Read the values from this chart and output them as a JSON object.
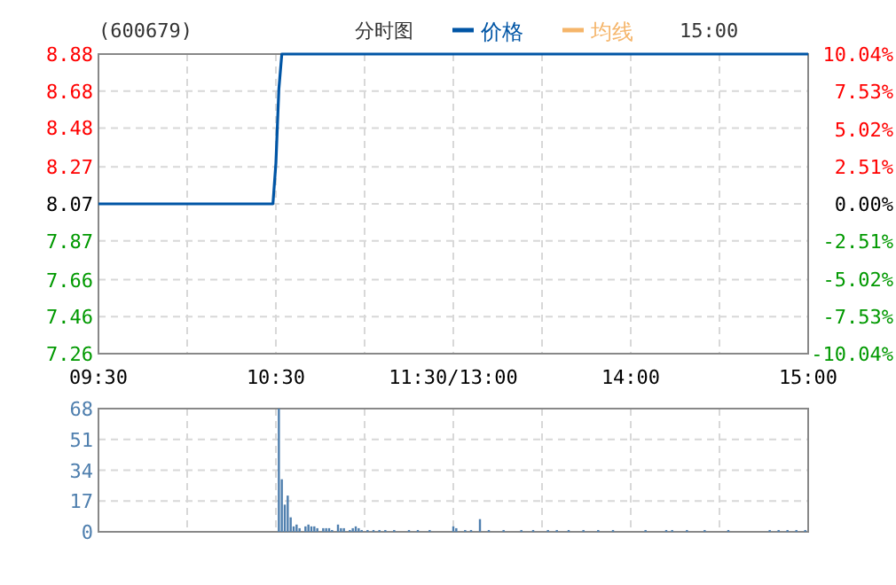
{
  "chart_data": [
    {
      "type": "line",
      "title": "(600679)",
      "subtitle": "分时图",
      "annotations": [
        "15:00"
      ],
      "legend": "top",
      "grid": true,
      "categories": [
        "09:30",
        null,
        null,
        null,
        null,
        null,
        null,
        null,
        null,
        null,
        null,
        null,
        null,
        null,
        null,
        null,
        null,
        null,
        null,
        null,
        null,
        null,
        null,
        null,
        null,
        null,
        null,
        null,
        null,
        null,
        null,
        null,
        null,
        null,
        null,
        null,
        null,
        null,
        null,
        null,
        null,
        null,
        null,
        null,
        null,
        null,
        null,
        null,
        null,
        null,
        null,
        null,
        null,
        null,
        null,
        null,
        null,
        null,
        null,
        null,
        "10:30",
        null,
        null,
        null,
        null,
        null,
        null,
        null,
        null,
        null,
        null,
        null,
        null,
        null,
        null,
        null,
        null,
        null,
        null,
        null,
        null,
        null,
        null,
        null,
        null,
        null,
        null,
        null,
        null,
        null,
        null,
        null,
        null,
        null,
        null,
        null,
        null,
        null,
        null,
        null,
        null,
        null,
        null,
        null,
        null,
        null,
        null,
        null,
        null,
        null,
        null,
        null,
        null,
        null,
        null,
        null,
        null,
        null,
        null,
        null,
        "11:30/13:00",
        null,
        null,
        null,
        null,
        null,
        null,
        null,
        null,
        null,
        null,
        null,
        null,
        null,
        null,
        null,
        null,
        null,
        null,
        null,
        null,
        null,
        null,
        null,
        null,
        null,
        null,
        null,
        null,
        null,
        null,
        null,
        null,
        null,
        null,
        null,
        null,
        null,
        null,
        null,
        null,
        null,
        null,
        null,
        null,
        null,
        null,
        null,
        null,
        null,
        null,
        null,
        null,
        null,
        null,
        null,
        null,
        null,
        null,
        null,
        "14:00",
        null,
        null,
        null,
        null,
        null,
        null,
        null,
        null,
        null,
        null,
        null,
        null,
        null,
        null,
        null,
        null,
        null,
        null,
        null,
        null,
        null,
        null,
        null,
        null,
        null,
        null,
        null,
        null,
        null,
        null,
        null,
        null,
        null,
        null,
        null,
        null,
        null,
        null,
        null,
        null,
        null,
        null,
        null,
        null,
        null,
        null,
        null,
        null,
        null,
        null,
        null,
        null,
        null,
        null,
        null,
        null,
        null,
        null,
        null,
        "15:00"
      ],
      "series": [
        {
          "name": "价格",
          "color": "#0055a5",
          "values": [
            8.07,
            8.07,
            8.07,
            8.07,
            8.07,
            8.07,
            8.07,
            8.07,
            8.07,
            8.07,
            8.07,
            8.07,
            8.07,
            8.07,
            8.07,
            8.07,
            8.07,
            8.07,
            8.07,
            8.07,
            8.07,
            8.07,
            8.07,
            8.07,
            8.07,
            8.07,
            8.07,
            8.07,
            8.07,
            8.07,
            8.07,
            8.07,
            8.07,
            8.07,
            8.07,
            8.07,
            8.07,
            8.07,
            8.07,
            8.07,
            8.07,
            8.07,
            8.07,
            8.07,
            8.07,
            8.07,
            8.07,
            8.07,
            8.07,
            8.07,
            8.07,
            8.07,
            8.07,
            8.07,
            8.07,
            8.07,
            8.07,
            8.07,
            8.07,
            8.07,
            8.29,
            8.69,
            8.88,
            8.88,
            8.88,
            8.88,
            8.88,
            8.88,
            8.88,
            8.88,
            8.88,
            8.88,
            8.88,
            8.88,
            8.88,
            8.88,
            8.88,
            8.88,
            8.88,
            8.88,
            8.88,
            8.88,
            8.88,
            8.88,
            8.88,
            8.88,
            8.88,
            8.88,
            8.88,
            8.88,
            8.88,
            8.88,
            8.88,
            8.88,
            8.88,
            8.88,
            8.88,
            8.88,
            8.88,
            8.88,
            8.88,
            8.88,
            8.88,
            8.88,
            8.88,
            8.88,
            8.88,
            8.88,
            8.88,
            8.88,
            8.88,
            8.88,
            8.88,
            8.88,
            8.88,
            8.88,
            8.88,
            8.88,
            8.88,
            8.88,
            8.88,
            8.88,
            8.88,
            8.88,
            8.88,
            8.88,
            8.88,
            8.88,
            8.88,
            8.88,
            8.88,
            8.88,
            8.88,
            8.88,
            8.88,
            8.88,
            8.88,
            8.88,
            8.88,
            8.88,
            8.88,
            8.88,
            8.88,
            8.88,
            8.88,
            8.88,
            8.88,
            8.88,
            8.88,
            8.88,
            8.88,
            8.88,
            8.88,
            8.88,
            8.88,
            8.88,
            8.88,
            8.88,
            8.88,
            8.88,
            8.88,
            8.88,
            8.88,
            8.88,
            8.88,
            8.88,
            8.88,
            8.88,
            8.88,
            8.88,
            8.88,
            8.88,
            8.88,
            8.88,
            8.88,
            8.88,
            8.88,
            8.88,
            8.88,
            8.88,
            8.88,
            8.88,
            8.88,
            8.88,
            8.88,
            8.88,
            8.88,
            8.88,
            8.88,
            8.88,
            8.88,
            8.88,
            8.88,
            8.88,
            8.88,
            8.88,
            8.88,
            8.88,
            8.88,
            8.88,
            8.88,
            8.88,
            8.88,
            8.88,
            8.88,
            8.88,
            8.88,
            8.88,
            8.88,
            8.88,
            8.88,
            8.88,
            8.88,
            8.88,
            8.88,
            8.88,
            8.88,
            8.88,
            8.88,
            8.88,
            8.88,
            8.88,
            8.88,
            8.88,
            8.88,
            8.88,
            8.88,
            8.88,
            8.88,
            8.88,
            8.88,
            8.88,
            8.88,
            8.88,
            8.88,
            8.88,
            8.88,
            8.88,
            8.88,
            8.88,
            8.88
          ]
        },
        {
          "name": "均线",
          "color": "#f5b56a",
          "values": [
            null,
            null,
            null,
            null,
            null,
            null,
            null,
            null,
            null,
            null,
            null,
            null,
            null,
            null,
            null,
            null,
            null,
            null,
            null,
            null,
            null,
            null,
            null,
            null,
            null,
            null,
            null,
            null,
            null,
            null,
            null,
            null,
            null,
            null,
            null,
            null,
            null,
            null,
            null,
            null,
            null,
            null,
            null,
            null,
            null,
            null,
            null,
            null,
            null,
            null,
            null,
            null,
            null,
            null,
            null,
            null,
            null,
            null,
            null,
            null,
            null,
            null,
            null,
            null,
            null,
            null,
            null,
            null,
            null,
            null,
            null,
            null,
            null,
            null,
            null,
            null,
            null,
            null,
            null,
            null,
            null,
            null,
            null,
            null,
            null,
            null,
            null,
            null,
            null,
            null,
            null,
            null,
            null,
            null,
            null,
            null,
            null,
            null,
            null,
            null,
            null,
            null,
            null,
            null,
            null,
            null,
            null,
            null,
            null,
            null,
            null,
            null,
            null,
            null,
            null,
            null,
            null,
            null,
            null,
            null,
            null,
            null,
            null,
            null,
            null,
            null,
            null,
            null,
            null,
            null,
            null,
            null,
            null,
            null,
            null,
            null,
            null,
            null,
            null,
            null,
            null,
            null,
            null,
            null,
            null,
            null,
            null,
            null,
            null,
            null,
            null,
            null,
            null,
            null,
            null,
            null,
            null,
            null,
            null,
            null,
            null,
            null,
            null,
            null,
            null,
            null,
            null,
            null,
            null,
            null,
            null,
            null,
            null,
            null,
            null,
            null,
            null,
            null,
            null,
            null,
            null,
            null,
            null,
            null,
            null,
            null,
            null,
            null,
            null,
            null,
            null,
            null,
            null,
            null,
            null,
            null,
            null,
            null,
            null,
            null,
            null,
            null,
            null,
            null,
            null,
            null,
            null,
            null,
            null,
            null,
            null,
            null,
            null,
            null,
            null,
            null,
            null,
            null,
            null,
            null,
            null,
            null,
            null,
            null,
            null,
            null,
            null,
            null,
            null,
            null,
            null,
            null,
            null,
            null,
            null,
            null,
            null,
            null,
            null,
            null,
            null
          ]
        }
      ],
      "ylim": [
        7.26,
        8.88
      ],
      "yticks": [
        7.26,
        7.46,
        7.66,
        7.87,
        8.07,
        8.27,
        8.48,
        8.68,
        8.88
      ],
      "y2lim": [
        -10.04,
        10.04
      ],
      "y2ticks": [
        {
          "value": -10.04,
          "label": "-10.04%"
        },
        {
          "value": -7.53,
          "label": "-7.53%"
        },
        {
          "value": -5.02,
          "label": "-5.02%"
        },
        {
          "value": -2.51,
          "label": "-2.51%"
        },
        {
          "value": 0,
          "label": "0.00%"
        },
        {
          "value": 2.51,
          "label": "2.51%"
        },
        {
          "value": 5.02,
          "label": "5.02%"
        },
        {
          "value": 7.53,
          "label": "7.53%"
        },
        {
          "value": 10.04,
          "label": "10.04%"
        }
      ]
    },
    {
      "type": "bar",
      "color": "#4f7fae",
      "grid": true,
      "tick_labels": "y",
      "categories": [
        null,
        null,
        null,
        null,
        null,
        null,
        null,
        null,
        null,
        null,
        null,
        null,
        null,
        null,
        null,
        null,
        null,
        null,
        null,
        null,
        null,
        null,
        null,
        null,
        null,
        null,
        null,
        null,
        null,
        null,
        null,
        null,
        null,
        null,
        null,
        null,
        null,
        null,
        null,
        null,
        null,
        null,
        null,
        null,
        null,
        null,
        null,
        null,
        null,
        null,
        null,
        null,
        null,
        null,
        null,
        null,
        null,
        null,
        null,
        null,
        null,
        null,
        null,
        null,
        null,
        null,
        null,
        null,
        null,
        null,
        null,
        null,
        null,
        null,
        null,
        null,
        null,
        null,
        null,
        null,
        null,
        null,
        null,
        null,
        null,
        null,
        null,
        null,
        null,
        null,
        null,
        null,
        null,
        null,
        null,
        null,
        null,
        null,
        null,
        null,
        null,
        null,
        null,
        null,
        null,
        null,
        null,
        null,
        null,
        null,
        null,
        null,
        null,
        null,
        null,
        null,
        null,
        null,
        null,
        null,
        null,
        null,
        null,
        null,
        null,
        null,
        null,
        null,
        null,
        null,
        null,
        null,
        null,
        null,
        null,
        null,
        null,
        null,
        null,
        null,
        null,
        null,
        null,
        null,
        null,
        null,
        null,
        null,
        null,
        null,
        null,
        null,
        null,
        null,
        null,
        null,
        null,
        null,
        null,
        null,
        null,
        null,
        null,
        null,
        null,
        null,
        null,
        null,
        null,
        null,
        null,
        null,
        null,
        null,
        null,
        null,
        null,
        null,
        null,
        null,
        null,
        null,
        null,
        null,
        null,
        null,
        null,
        null,
        null,
        null,
        null,
        null,
        null,
        null,
        null,
        null,
        null,
        null,
        null,
        null,
        null,
        null,
        null,
        null,
        null,
        null,
        null,
        null,
        null,
        null,
        null,
        null,
        null,
        null,
        null,
        null,
        null,
        null,
        null,
        null,
        null,
        null,
        null,
        null,
        null,
        null,
        null,
        null,
        null,
        null,
        null,
        null,
        null,
        null,
        null,
        null,
        null,
        null,
        null,
        null,
        null
      ],
      "values": [
        null,
        null,
        null,
        null,
        null,
        null,
        null,
        null,
        null,
        null,
        null,
        null,
        null,
        null,
        null,
        null,
        null,
        null,
        null,
        null,
        null,
        null,
        null,
        null,
        null,
        null,
        null,
        null,
        null,
        null,
        null,
        null,
        null,
        null,
        null,
        null,
        null,
        null,
        null,
        null,
        null,
        null,
        null,
        null,
        null,
        null,
        null,
        null,
        null,
        null,
        null,
        null,
        null,
        null,
        null,
        null,
        null,
        null,
        null,
        null,
        null,
        68,
        29,
        15,
        20,
        8,
        3,
        4,
        2,
        null,
        3,
        4,
        3,
        3,
        2,
        null,
        2,
        2,
        2,
        1,
        null,
        4,
        2,
        2,
        null,
        1,
        2,
        3,
        2,
        1,
        null,
        1,
        null,
        1,
        null,
        1,
        null,
        1,
        null,
        null,
        1,
        null,
        null,
        null,
        null,
        1,
        null,
        null,
        1,
        null,
        null,
        null,
        1,
        null,
        null,
        null,
        null,
        null,
        null,
        null,
        3,
        2,
        null,
        null,
        1,
        null,
        1,
        null,
        null,
        7,
        null,
        null,
        1,
        null,
        null,
        null,
        null,
        1,
        null,
        null,
        null,
        null,
        null,
        1,
        null,
        null,
        null,
        1,
        null,
        null,
        null,
        null,
        1,
        null,
        null,
        1,
        null,
        null,
        null,
        1,
        null,
        null,
        null,
        null,
        1,
        null,
        null,
        null,
        null,
        1,
        null,
        null,
        null,
        null,
        1,
        null,
        null,
        null,
        null,
        null,
        null,
        null,
        null,
        null,
        null,
        1,
        null,
        null,
        null,
        null,
        null,
        null,
        1,
        null,
        1,
        null,
        null,
        null,
        null,
        1,
        null,
        null,
        null,
        null,
        null,
        1,
        null,
        null,
        null,
        null,
        null,
        null,
        null,
        1,
        null,
        null,
        null,
        null,
        null,
        null,
        null,
        null,
        null,
        null,
        null,
        null,
        null,
        1,
        null,
        null,
        1,
        null,
        null,
        1,
        null,
        null,
        1,
        null,
        null,
        1,
        null
      ],
      "ylim": [
        0,
        68
      ],
      "yticks": [
        0,
        17,
        34,
        51,
        68
      ]
    }
  ]
}
